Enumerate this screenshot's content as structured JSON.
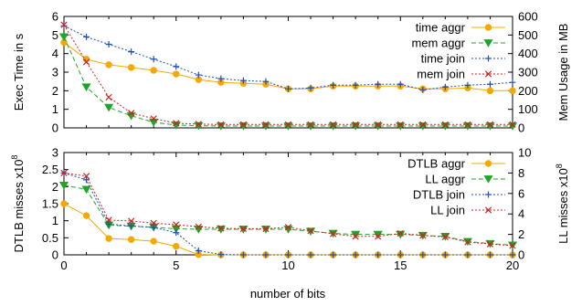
{
  "chart_data": [
    {
      "type": "line",
      "xlabel": "",
      "ylabel": "Exec Time in s",
      "y2label": "Mem Usage in MB",
      "xlim": [
        0,
        20
      ],
      "ylim": [
        0,
        6
      ],
      "y2lim": [
        0,
        600
      ],
      "xticks": [
        0,
        5,
        10,
        15,
        20
      ],
      "yticks": [
        0,
        1,
        2,
        3,
        4,
        5,
        6
      ],
      "y2ticks": [
        0,
        100,
        200,
        300,
        400,
        500,
        600
      ],
      "legend_position": "top-right",
      "x": [
        0,
        1,
        2,
        3,
        4,
        5,
        6,
        7,
        8,
        9,
        10,
        11,
        12,
        13,
        14,
        15,
        16,
        17,
        18,
        19,
        20
      ],
      "series": [
        {
          "name": "time aggr",
          "axis": "left",
          "color": "#f5a800",
          "marker": "circle",
          "dash": "solid",
          "values": [
            4.6,
            3.7,
            3.4,
            3.25,
            3.1,
            2.9,
            2.6,
            2.45,
            2.4,
            2.35,
            2.1,
            2.1,
            2.25,
            2.25,
            2.25,
            2.25,
            2.1,
            2.1,
            2.15,
            2.0,
            2.0
          ]
        },
        {
          "name": "mem aggr",
          "axis": "right",
          "color": "#1fa62a",
          "marker": "triangle-down",
          "dash": "dashed",
          "values": [
            490,
            220,
            110,
            65,
            30,
            15,
            12,
            10,
            10,
            10,
            10,
            10,
            10,
            10,
            10,
            10,
            10,
            10,
            10,
            10,
            10
          ]
        },
        {
          "name": "time join",
          "axis": "left",
          "color": "#1f4fb4",
          "marker": "plus",
          "dash": "dotted",
          "values": [
            5.5,
            4.9,
            4.5,
            4.1,
            3.7,
            3.3,
            2.85,
            2.65,
            2.55,
            2.5,
            2.1,
            2.15,
            2.3,
            2.3,
            2.35,
            2.35,
            2.05,
            2.2,
            2.3,
            2.35,
            2.45
          ]
        },
        {
          "name": "mem join",
          "axis": "right",
          "color": "#cc2222",
          "marker": "x",
          "dash": "dotted",
          "values": [
            555,
            355,
            165,
            80,
            50,
            25,
            20,
            18,
            18,
            18,
            18,
            18,
            18,
            18,
            18,
            18,
            18,
            18,
            18,
            18,
            18
          ]
        }
      ]
    },
    {
      "type": "line",
      "xlabel": "number of bits",
      "ylabel": "DTLB misses x10",
      "ylabel_exp": "8",
      "y2label": "LL misses x10",
      "y2label_exp": "8",
      "xlim": [
        0,
        20
      ],
      "ylim": [
        0,
        3
      ],
      "y2lim": [
        0,
        10
      ],
      "xticks": [
        0,
        5,
        10,
        15,
        20
      ],
      "yticks": [
        0,
        0.5,
        1,
        1.5,
        2,
        2.5,
        3
      ],
      "ytick_labels": [
        "0",
        "0.5",
        "1",
        "1.5",
        "2",
        "2.5",
        "3"
      ],
      "y2ticks": [
        0,
        2,
        4,
        6,
        8,
        10
      ],
      "legend_position": "top-right",
      "x": [
        0,
        1,
        2,
        3,
        4,
        5,
        6,
        7,
        8,
        9,
        10,
        11,
        12,
        13,
        14,
        15,
        16,
        17,
        18,
        19,
        20
      ],
      "series": [
        {
          "name": "DTLB aggr",
          "axis": "left",
          "color": "#f5a800",
          "marker": "circle",
          "dash": "solid",
          "values": [
            1.5,
            1.15,
            0.48,
            0.45,
            0.4,
            0.25,
            0.01,
            0.0,
            0.0,
            0.0,
            0.0,
            0.0,
            0.0,
            0.0,
            0.0,
            0.0,
            0.0,
            0.0,
            0.0,
            0.0,
            0.0
          ]
        },
        {
          "name": "LL aggr",
          "axis": "right",
          "color": "#1fa62a",
          "marker": "triangle-down",
          "dash": "dashed",
          "values": [
            6.8,
            6.4,
            2.9,
            2.8,
            2.7,
            2.55,
            2.5,
            2.5,
            2.5,
            2.5,
            2.5,
            2.3,
            2.1,
            2.0,
            2.0,
            2.0,
            1.9,
            1.8,
            1.3,
            1.1,
            0.95
          ]
        },
        {
          "name": "DTLB join",
          "axis": "left",
          "color": "#1f4fb4",
          "marker": "plus",
          "dash": "dotted",
          "values": [
            2.4,
            2.2,
            0.9,
            0.85,
            0.8,
            0.65,
            0.12,
            0.01,
            0.0,
            0.0,
            0.0,
            0.0,
            0.0,
            0.0,
            0.0,
            0.0,
            0.0,
            0.0,
            0.0,
            0.0,
            0.0
          ]
        },
        {
          "name": "LL join",
          "axis": "right",
          "color": "#cc2222",
          "marker": "x",
          "dash": "dotted",
          "values": [
            8.0,
            7.7,
            3.4,
            3.3,
            3.1,
            2.95,
            2.75,
            2.6,
            2.55,
            2.55,
            2.7,
            2.35,
            2.05,
            1.8,
            1.8,
            2.1,
            1.9,
            1.75,
            1.25,
            1.05,
            0.9
          ]
        }
      ]
    }
  ]
}
